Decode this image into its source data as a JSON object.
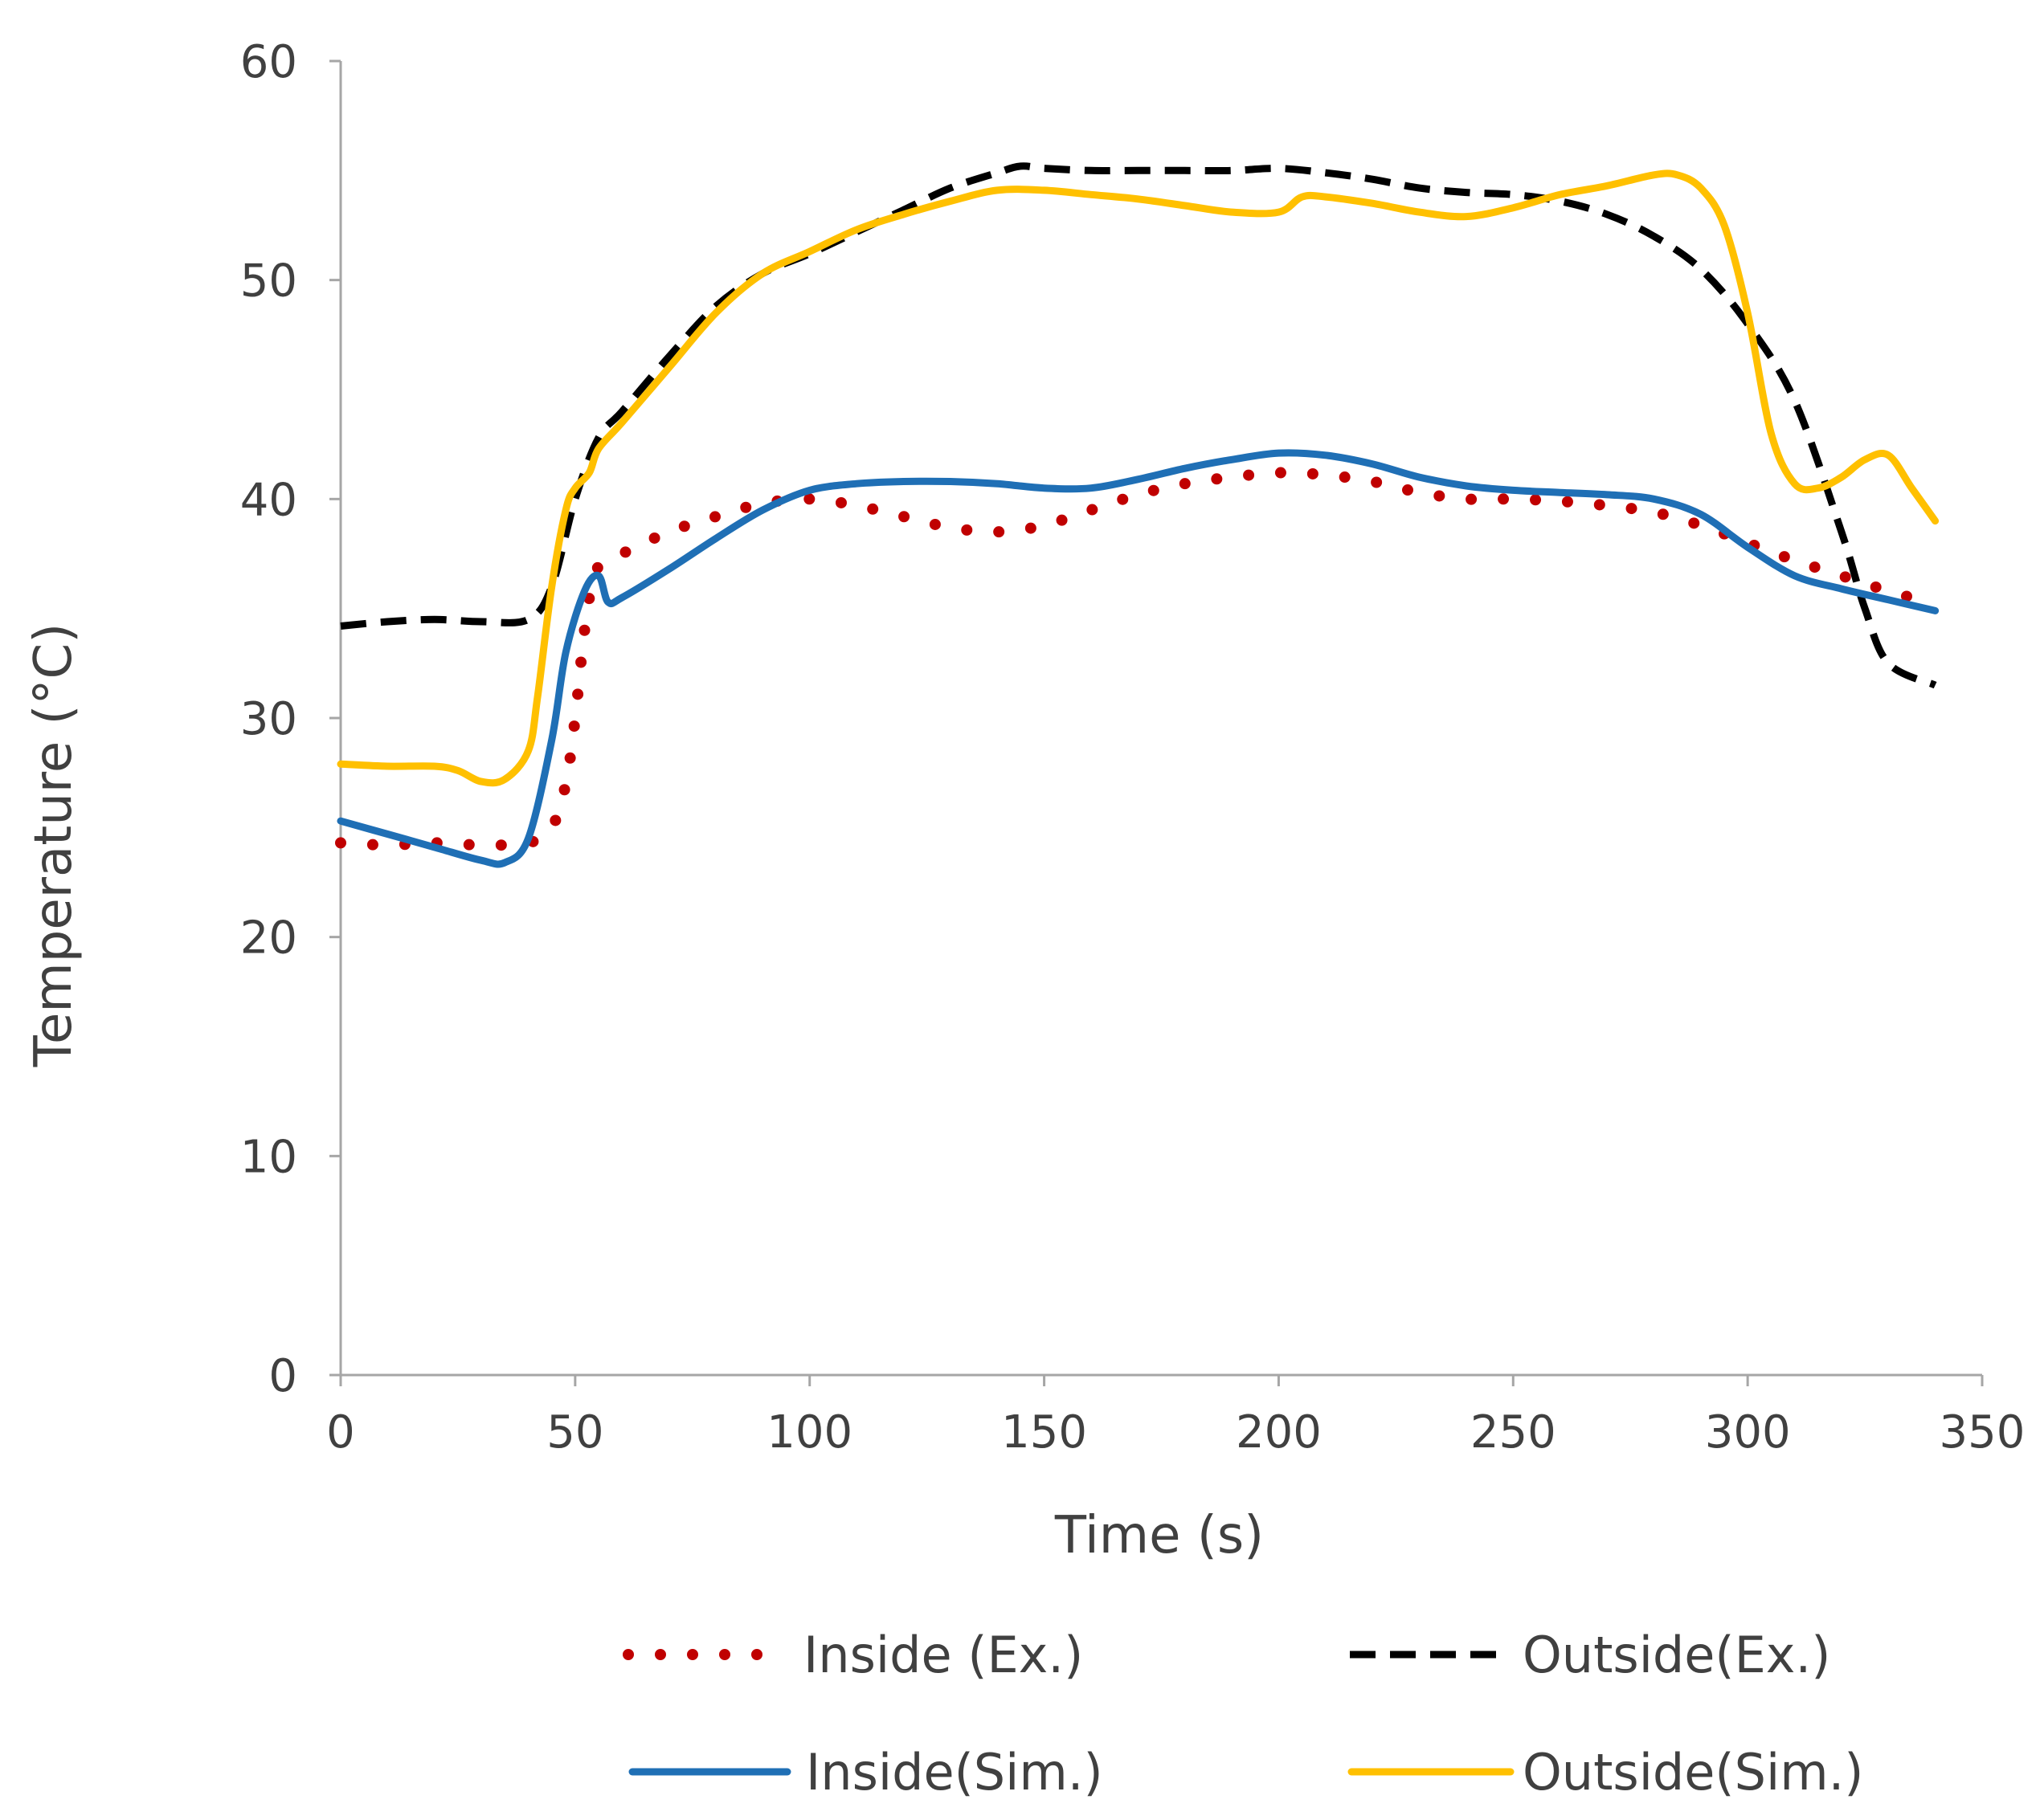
{
  "chart_data": {
    "type": "line",
    "title": "",
    "xlabel": "Time (s)",
    "ylabel": "Temperature (°C)",
    "xlim": [
      0,
      350
    ],
    "ylim": [
      0,
      60
    ],
    "xticks": [
      0,
      50,
      100,
      150,
      200,
      250,
      300,
      350
    ],
    "yticks": [
      0,
      10,
      20,
      30,
      40,
      50,
      60
    ],
    "grid": false,
    "legend_position": "bottom",
    "series": [
      {
        "name": "Inside (Ex.)",
        "color": "#c00000",
        "style": "dotted",
        "x": [
          0,
          10,
          20,
          30,
          40,
          45,
          48,
          50,
          52,
          54,
          56,
          60,
          70,
          80,
          90,
          100,
          110,
          120,
          130,
          140,
          150,
          160,
          170,
          180,
          190,
          200,
          210,
          220,
          230,
          240,
          250,
          260,
          270,
          280,
          290,
          300,
          310,
          320,
          330,
          340
        ],
        "values": [
          24.3,
          24.2,
          24.3,
          24.2,
          24.3,
          25.0,
          27.0,
          30.0,
          34.0,
          36.5,
          37.0,
          37.5,
          38.5,
          39.2,
          39.8,
          40.0,
          39.7,
          39.2,
          38.7,
          38.5,
          38.8,
          39.5,
          40.2,
          40.7,
          41.0,
          41.2,
          41.1,
          40.8,
          40.3,
          40.0,
          40.0,
          39.9,
          39.7,
          39.4,
          38.8,
          38.0,
          37.2,
          36.5,
          35.8,
          35.2
        ]
      },
      {
        "name": "Outside(Ex.)",
        "color": "#000000",
        "style": "dashed",
        "x": [
          0,
          10,
          20,
          30,
          40,
          45,
          50,
          55,
          60,
          70,
          80,
          90,
          100,
          110,
          120,
          130,
          140,
          145,
          150,
          160,
          170,
          180,
          190,
          200,
          210,
          220,
          230,
          240,
          250,
          260,
          270,
          280,
          290,
          300,
          310,
          320,
          325,
          330,
          340
        ],
        "values": [
          34.2,
          34.4,
          34.5,
          34.4,
          34.5,
          36.0,
          40.0,
          42.8,
          44.0,
          46.5,
          48.8,
          50.3,
          51.2,
          52.2,
          53.2,
          54.2,
          54.9,
          55.2,
          55.1,
          55.0,
          55.0,
          55.0,
          55.0,
          55.1,
          54.9,
          54.6,
          54.2,
          54.0,
          53.9,
          53.6,
          53.0,
          52.0,
          50.5,
          48.0,
          44.5,
          38.5,
          35.0,
          32.5,
          31.5
        ]
      },
      {
        "name": "Inside(Sim.)",
        "color": "#1f6fb5",
        "style": "solid",
        "x": [
          0,
          10,
          20,
          30,
          35,
          40,
          45,
          48,
          52,
          55,
          57,
          60,
          70,
          80,
          90,
          100,
          110,
          120,
          130,
          140,
          150,
          160,
          170,
          180,
          190,
          200,
          210,
          220,
          230,
          240,
          250,
          260,
          270,
          280,
          290,
          300,
          310,
          320,
          330,
          340
        ],
        "values": [
          25.3,
          24.7,
          24.1,
          23.5,
          23.4,
          24.5,
          29.0,
          33.0,
          35.8,
          36.5,
          35.3,
          35.5,
          36.8,
          38.2,
          39.5,
          40.4,
          40.7,
          40.8,
          40.8,
          40.7,
          40.5,
          40.5,
          40.9,
          41.4,
          41.8,
          42.1,
          42.0,
          41.6,
          41.0,
          40.6,
          40.4,
          40.3,
          40.2,
          40.0,
          39.3,
          37.8,
          36.5,
          35.9,
          35.4,
          34.9
        ]
      },
      {
        "name": "Outside(Sim.)",
        "color": "#ffc000",
        "style": "solid",
        "x": [
          0,
          10,
          20,
          25,
          30,
          35,
          40,
          42,
          45,
          48,
          50,
          53,
          55,
          60,
          70,
          80,
          90,
          100,
          110,
          120,
          130,
          140,
          150,
          160,
          170,
          180,
          190,
          200,
          205,
          210,
          220,
          230,
          240,
          250,
          260,
          270,
          280,
          285,
          290,
          295,
          300,
          305,
          310,
          315,
          320,
          325,
          330,
          335,
          340
        ],
        "values": [
          27.9,
          27.8,
          27.8,
          27.6,
          27.1,
          27.2,
          28.5,
          31.0,
          36.0,
          39.5,
          40.5,
          41.2,
          42.3,
          43.5,
          46.0,
          48.5,
          50.3,
          51.3,
          52.3,
          53.0,
          53.6,
          54.1,
          54.1,
          53.9,
          53.7,
          53.4,
          53.1,
          53.1,
          53.8,
          53.8,
          53.5,
          53.1,
          52.9,
          53.3,
          53.9,
          54.3,
          54.8,
          54.8,
          54.2,
          52.5,
          48.5,
          43.0,
          40.7,
          40.5,
          41.0,
          41.8,
          42.0,
          40.5,
          39.0
        ]
      }
    ]
  }
}
